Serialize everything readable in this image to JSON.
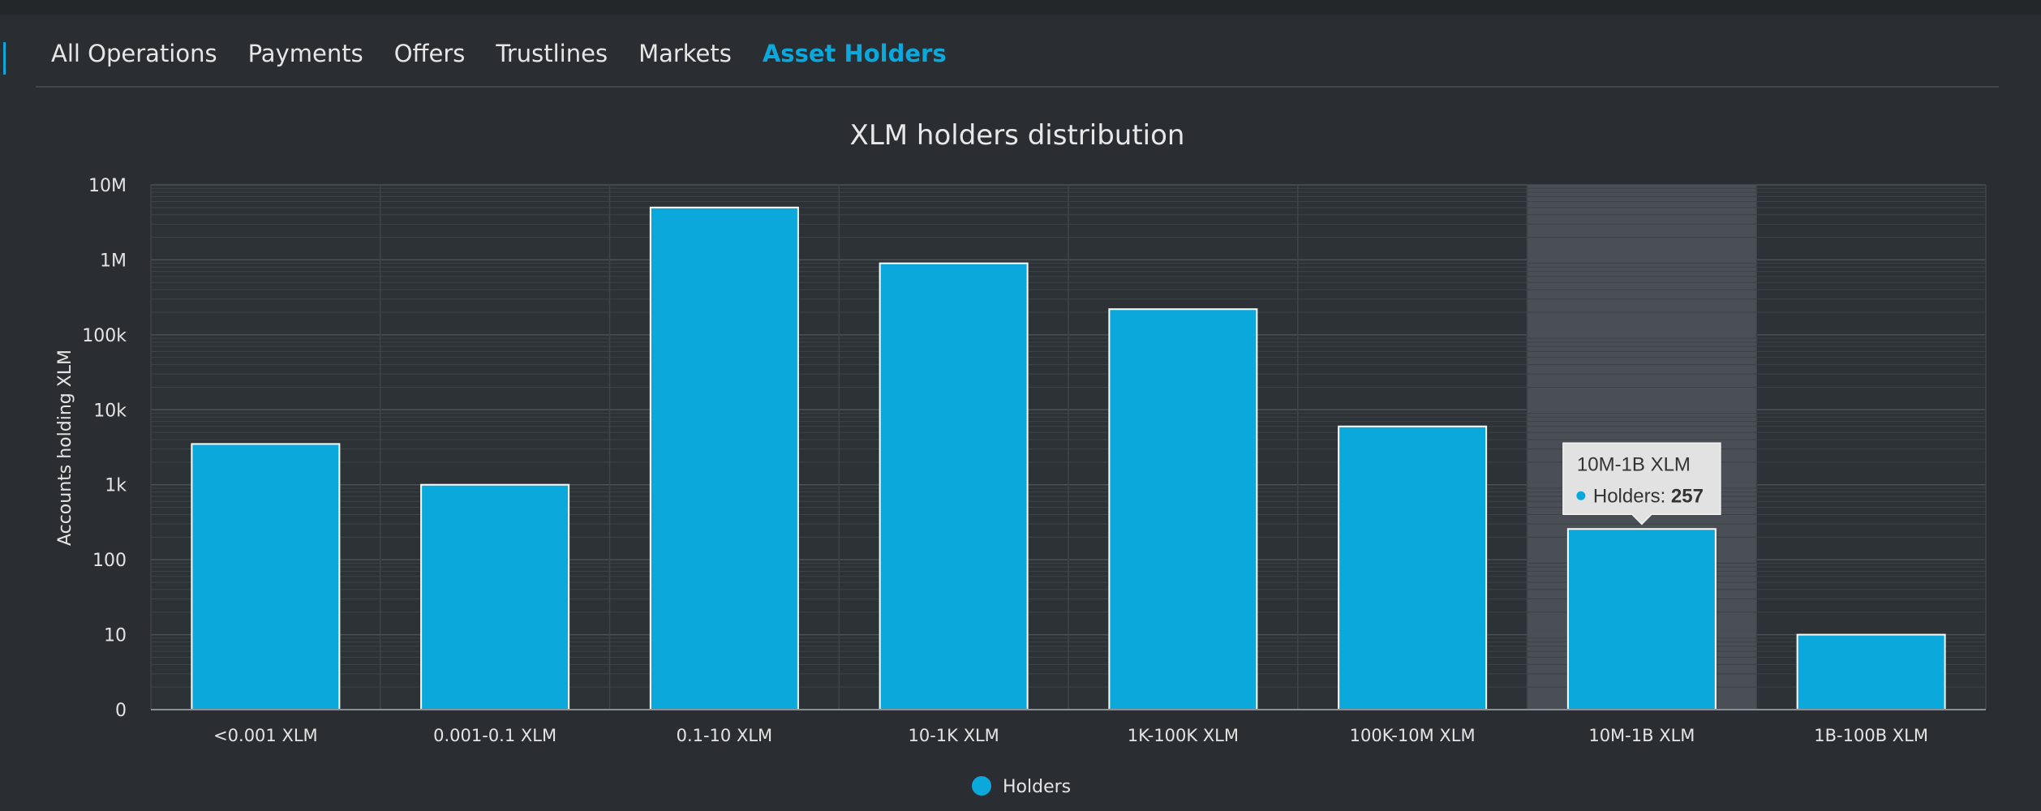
{
  "tabs": [
    {
      "label": "All Operations",
      "active": false
    },
    {
      "label": "Payments",
      "active": false
    },
    {
      "label": "Offers",
      "active": false
    },
    {
      "label": "Trustlines",
      "active": false
    },
    {
      "label": "Markets",
      "active": false
    },
    {
      "label": "Asset Holders",
      "active": true
    }
  ],
  "colors": {
    "accent": "#0ba8dc",
    "bar": "#0ba8dc",
    "bar_border": "#ffffff",
    "background": "#2a2e32",
    "highlight": "#50555c",
    "tooltip_bg": "#e2e2e2"
  },
  "chart_data": {
    "type": "bar",
    "title": "XLM holders distribution",
    "ylabel": "Accounts holding XLM",
    "xlabel": "",
    "yscale": "log",
    "ylim": [
      1,
      10000000
    ],
    "yticks": [
      {
        "value": 1,
        "label": "0"
      },
      {
        "value": 10,
        "label": "10"
      },
      {
        "value": 100,
        "label": "100"
      },
      {
        "value": 1000,
        "label": "1k"
      },
      {
        "value": 10000,
        "label": "10k"
      },
      {
        "value": 100000,
        "label": "100k"
      },
      {
        "value": 1000000,
        "label": "1M"
      },
      {
        "value": 10000000,
        "label": "10M"
      }
    ],
    "categories": [
      "<0.001 XLM",
      "0.001-0.1 XLM",
      "0.1-10 XLM",
      "10-1K XLM",
      "1K-100K XLM",
      "100K-10M XLM",
      "10M-1B XLM",
      "1B-100B XLM"
    ],
    "series": [
      {
        "name": "Holders",
        "values": [
          3500,
          1000,
          5000000,
          900000,
          220000,
          6000,
          257,
          10
        ]
      }
    ],
    "grid": true,
    "legend": "bottom-center",
    "highlighted_category": "10M-1B XLM",
    "tooltip": {
      "title": "10M-1B XLM",
      "label": "Holders:",
      "value": "257"
    }
  }
}
